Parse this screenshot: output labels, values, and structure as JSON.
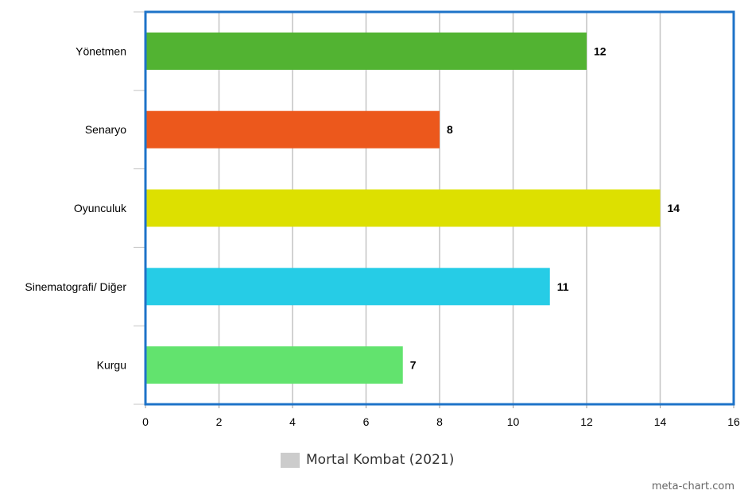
{
  "chart_data": {
    "type": "bar",
    "orientation": "horizontal",
    "categories": [
      "Yönetmen",
      "Senaryo",
      "Oyunculuk",
      "Sinematografi/ Diğer",
      "Kurgu"
    ],
    "values": [
      12,
      8,
      14,
      11,
      7
    ],
    "bar_colors": [
      "#52b332",
      "#ec581c",
      "#dde000",
      "#26cce6",
      "#62e36e"
    ],
    "xlim": [
      0,
      16
    ],
    "xticks": [
      "0",
      "2",
      "4",
      "6",
      "8",
      "10",
      "12",
      "14",
      "16"
    ],
    "grid": true,
    "legend": {
      "placement": "bottom",
      "entries": [
        {
          "label": "Mortal Kombat (2021)",
          "color": "#cccccc"
        }
      ]
    },
    "title": "",
    "xlabel": "",
    "ylabel": ""
  },
  "frame_color": "#1e73c8",
  "credit": "meta-chart.com"
}
